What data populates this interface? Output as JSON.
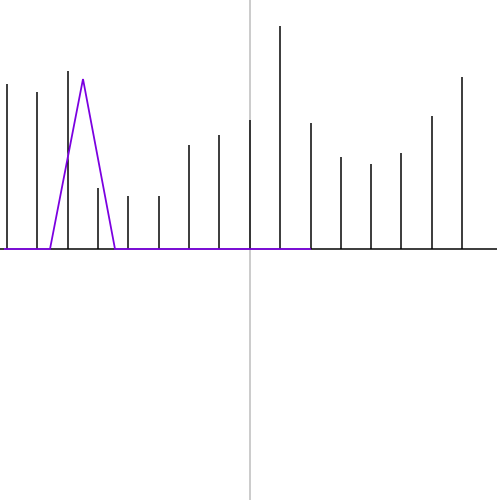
{
  "chart_data": {
    "type": "stem",
    "xlim": [
      -250,
      250
    ],
    "ylim": [
      -251,
      249
    ],
    "series": [
      {
        "type": "stem",
        "color": "#000000",
        "x": [
          -243,
          -213,
          -182,
          -152,
          -122,
          -91,
          -61,
          -31,
          0,
          30,
          61,
          91,
          121,
          151,
          182,
          212
        ],
        "values": [
          165,
          157,
          178,
          61,
          53,
          53,
          104,
          114,
          129,
          223,
          126,
          92,
          85,
          96,
          133,
          172
        ]
      },
      {
        "type": "line",
        "color": "#7b00e0",
        "x": [
          -246,
          -200,
          -167,
          -135,
          61
        ],
        "values": [
          0,
          0,
          170,
          0,
          0
        ]
      }
    ]
  }
}
